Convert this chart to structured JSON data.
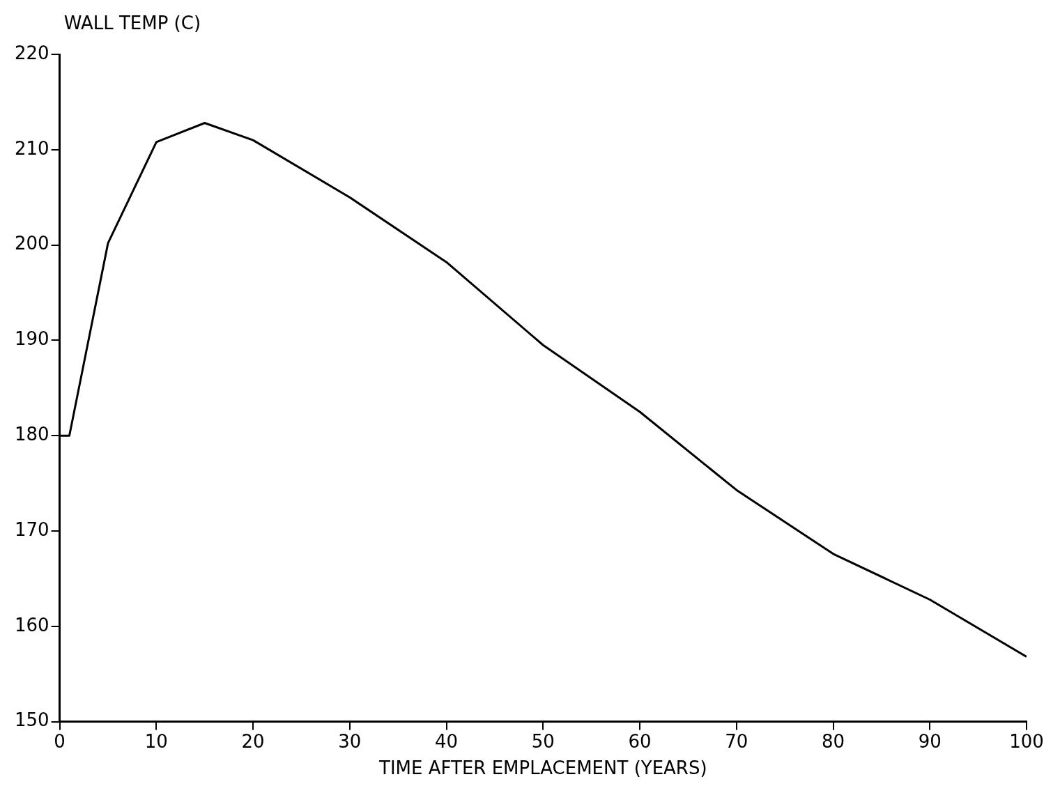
{
  "chart_data": {
    "type": "line",
    "xlabel": "TIME AFTER EMPLACEMENT (YEARS)",
    "ylabel": "WALL TEMP (C)",
    "x": [
      0,
      1,
      5,
      10,
      15,
      20,
      30,
      40,
      50,
      60,
      70,
      80,
      90,
      100
    ],
    "series": [
      {
        "color": "#000000",
        "values": [
          180,
          180,
          200.2,
          210.8,
          212.8,
          211,
          205,
          198.2,
          189.5,
          182.5,
          174.3,
          167.6,
          162.8,
          156.8
        ]
      }
    ],
    "xlim": [
      0,
      100
    ],
    "xticks": [
      0,
      10,
      20,
      30,
      40,
      50,
      60,
      70,
      80,
      90,
      100
    ],
    "ylim": [
      150,
      220
    ],
    "yticks": [
      150,
      160,
      170,
      180,
      190,
      200,
      210,
      220
    ],
    "grid": false,
    "legend": false,
    "marker": "none",
    "line_style": "solid"
  }
}
